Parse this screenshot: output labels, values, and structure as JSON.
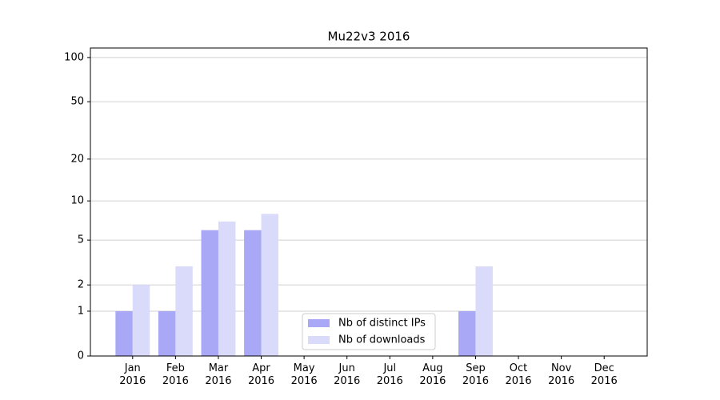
{
  "chart_data": {
    "type": "bar",
    "title": "Mu22v3 2016",
    "categories": [
      "Jan\n2016",
      "Feb\n2016",
      "Mar\n2016",
      "Apr\n2016",
      "May\n2016",
      "Jun\n2016",
      "Jul\n2016",
      "Aug\n2016",
      "Sep\n2016",
      "Oct\n2016",
      "Nov\n2016",
      "Dec\n2016"
    ],
    "series": [
      {
        "name": "Nb of distinct IPs",
        "color": "#a8a8f6",
        "values": [
          1,
          1,
          6,
          6,
          0,
          0,
          0,
          0,
          1,
          0,
          0,
          0
        ]
      },
      {
        "name": "Nb of downloads",
        "color": "#dadafb",
        "values": [
          2,
          3,
          7,
          8,
          0,
          0,
          0,
          0,
          3,
          0,
          0,
          0
        ]
      }
    ],
    "yscale": "log1p",
    "ylim": [
      0,
      116
    ],
    "yticks": [
      0,
      1,
      2,
      5,
      10,
      20,
      50,
      100
    ],
    "grid": true,
    "legend": "lower center"
  }
}
